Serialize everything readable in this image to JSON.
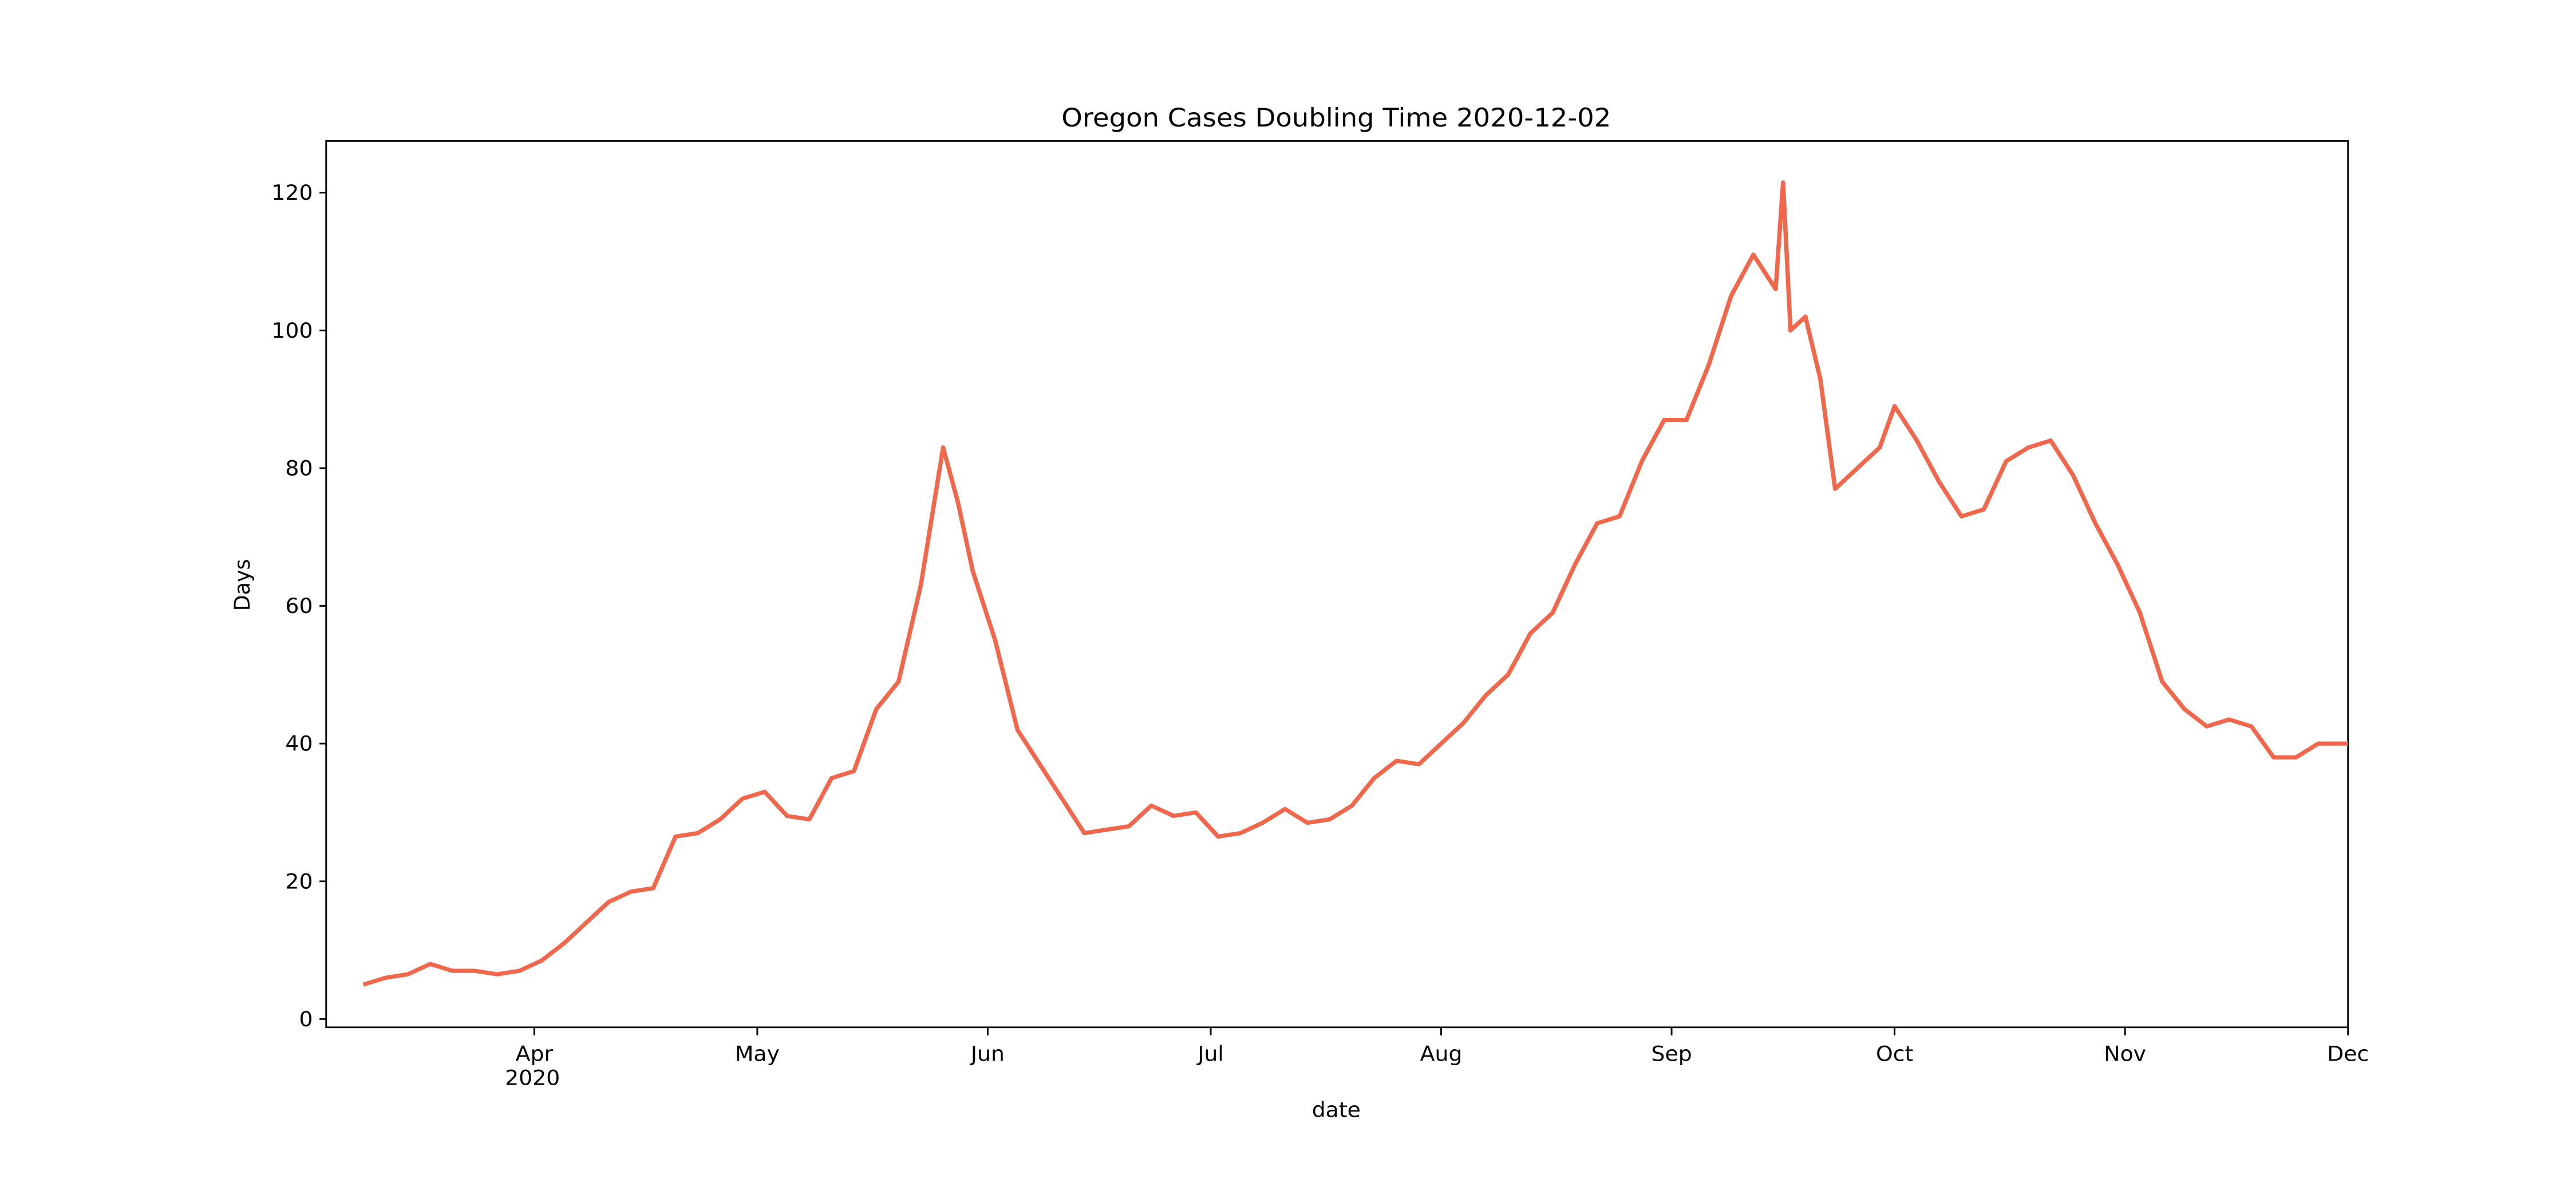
{
  "chart_data": {
    "type": "line",
    "title": "Oregon Cases Doubling Time 2020-12-02",
    "x_label": "date",
    "y_label": "Days",
    "year_label": "2020",
    "x": [
      "2020-03-09",
      "2020-03-12",
      "2020-03-15",
      "2020-03-18",
      "2020-03-21",
      "2020-03-24",
      "2020-03-27",
      "2020-03-30",
      "2020-04-02",
      "2020-04-05",
      "2020-04-08",
      "2020-04-11",
      "2020-04-14",
      "2020-04-17",
      "2020-04-20",
      "2020-04-23",
      "2020-04-26",
      "2020-04-29",
      "2020-05-02",
      "2020-05-05",
      "2020-05-08",
      "2020-05-11",
      "2020-05-14",
      "2020-05-17",
      "2020-05-20",
      "2020-05-23",
      "2020-05-26",
      "2020-05-28",
      "2020-05-30",
      "2020-06-02",
      "2020-06-05",
      "2020-06-08",
      "2020-06-11",
      "2020-06-14",
      "2020-06-17",
      "2020-06-20",
      "2020-06-23",
      "2020-06-26",
      "2020-06-29",
      "2020-07-02",
      "2020-07-05",
      "2020-07-08",
      "2020-07-11",
      "2020-07-14",
      "2020-07-17",
      "2020-07-20",
      "2020-07-23",
      "2020-07-26",
      "2020-07-29",
      "2020-08-01",
      "2020-08-04",
      "2020-08-07",
      "2020-08-10",
      "2020-08-13",
      "2020-08-16",
      "2020-08-19",
      "2020-08-22",
      "2020-08-25",
      "2020-08-28",
      "2020-08-31",
      "2020-09-03",
      "2020-09-06",
      "2020-09-09",
      "2020-09-12",
      "2020-09-15",
      "2020-09-16",
      "2020-09-17",
      "2020-09-19",
      "2020-09-21",
      "2020-09-23",
      "2020-09-26",
      "2020-09-29",
      "2020-10-01",
      "2020-10-04",
      "2020-10-07",
      "2020-10-10",
      "2020-10-13",
      "2020-10-16",
      "2020-10-19",
      "2020-10-22",
      "2020-10-25",
      "2020-10-28",
      "2020-10-31",
      "2020-11-03",
      "2020-11-06",
      "2020-11-09",
      "2020-11-12",
      "2020-11-15",
      "2020-11-18",
      "2020-11-21",
      "2020-11-24",
      "2020-11-27",
      "2020-12-01"
    ],
    "series": [
      {
        "name": "Days",
        "color": "#f0674b",
        "values": [
          5,
          6,
          6.5,
          8,
          7,
          7,
          6.5,
          7,
          8.5,
          11,
          14,
          17,
          18.5,
          19,
          26.5,
          27,
          29,
          32,
          33,
          29.5,
          29,
          35,
          36,
          45,
          49,
          63,
          83,
          75,
          65,
          55,
          42,
          37,
          32,
          27,
          27.5,
          28,
          31,
          29.5,
          30,
          26.5,
          27,
          28.5,
          30.5,
          28.5,
          29,
          31,
          35,
          37.5,
          37,
          40,
          43,
          47,
          50,
          56,
          59,
          66,
          72,
          73,
          81,
          87,
          87,
          95,
          105,
          111,
          106,
          121.5,
          100,
          102,
          93,
          77,
          80,
          83,
          89,
          84,
          78,
          73,
          74,
          81,
          83,
          84,
          79,
          72,
          66,
          59,
          49,
          45,
          42.5,
          43.5,
          42.5,
          38,
          38,
          40,
          40
        ]
      }
    ],
    "xlim": [
      "2020-03-04",
      "2020-12-01"
    ],
    "xticks": [
      {
        "value": "2020-04-01",
        "label": "Apr"
      },
      {
        "value": "2020-05-01",
        "label": "May"
      },
      {
        "value": "2020-06-01",
        "label": "Jun"
      },
      {
        "value": "2020-07-01",
        "label": "Jul"
      },
      {
        "value": "2020-08-01",
        "label": "Aug"
      },
      {
        "value": "2020-09-01",
        "label": "Sep"
      },
      {
        "value": "2020-10-01",
        "label": "Oct"
      },
      {
        "value": "2020-11-01",
        "label": "Nov"
      },
      {
        "value": "2020-12-01",
        "label": "Dec"
      }
    ],
    "ylim": [
      -1.2,
      127.5
    ],
    "yticks": [
      0,
      20,
      40,
      60,
      80,
      100,
      120
    ],
    "grid": false
  }
}
